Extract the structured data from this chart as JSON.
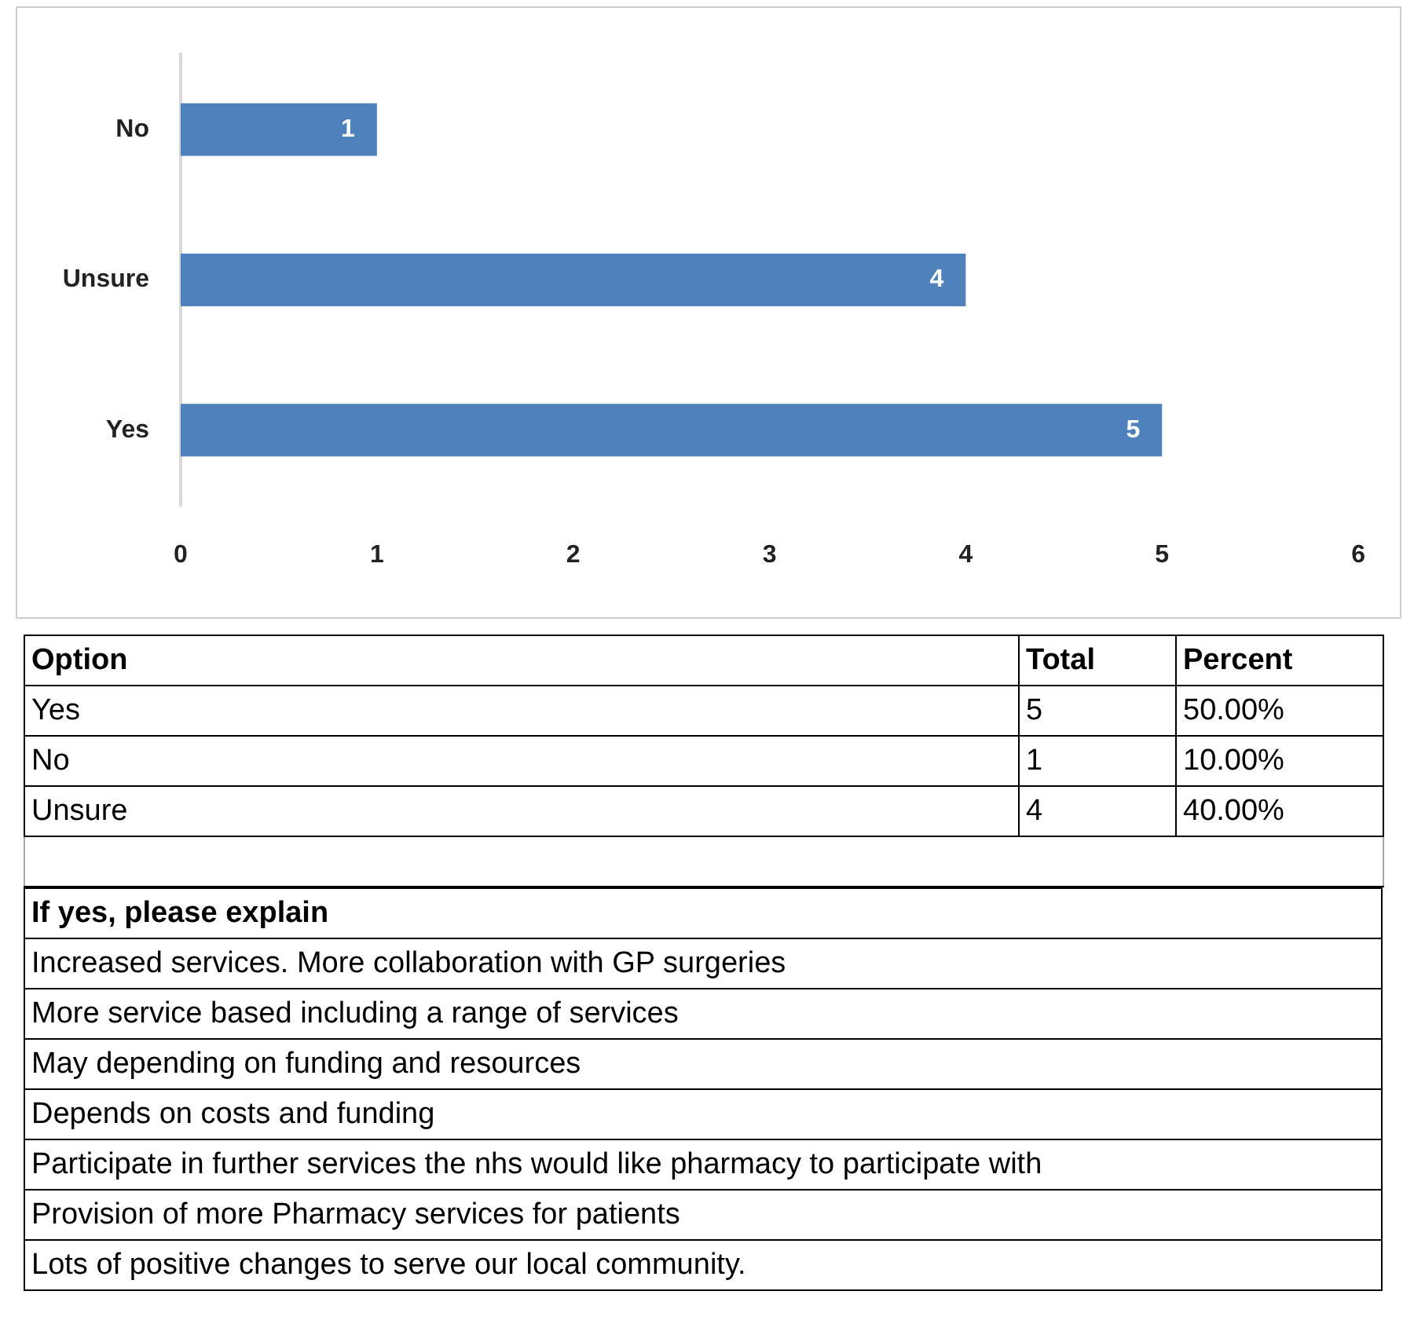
{
  "chart_data": [
    {
      "type": "bar",
      "orientation": "horizontal",
      "categories": [
        "No",
        "Unsure",
        "Yes"
      ],
      "values": [
        1,
        4,
        5
      ],
      "color": "#4f81bd",
      "xlim": [
        0,
        6
      ],
      "xticks": [
        0,
        1,
        2,
        3,
        4,
        5,
        6
      ],
      "grid": false,
      "legend": false,
      "data_labels": true
    },
    {
      "type": "other",
      "annotations": [
        "Option",
        "Total",
        "Percent",
        "Yes",
        "5",
        "50.00%",
        "No",
        "1",
        "10.00%",
        "Unsure",
        "4",
        "40.00%"
      ]
    },
    {
      "type": "other",
      "title": "If yes, please explain",
      "annotations": [
        "Increased services. More collaboration with GP surgeries",
        "More service based including a range of services",
        "May depending on funding and resources",
        "Depends on costs and funding",
        "Participate in further services the nhs would like pharmacy to participate with",
        "Provision of more Pharmacy services for patients",
        "Lots of positive changes to serve our local community."
      ]
    }
  ]
}
